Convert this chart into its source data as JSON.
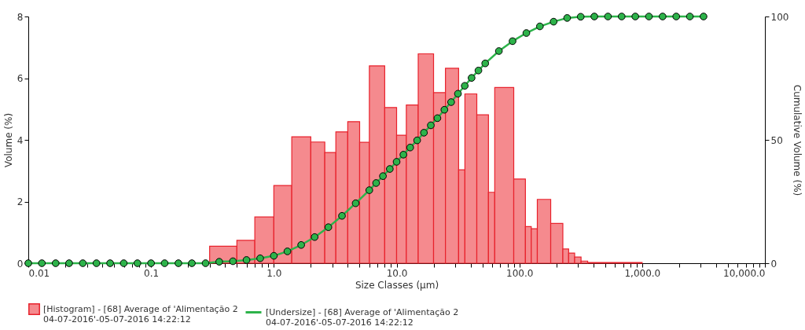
{
  "chart_data": {
    "type": "histogram",
    "xlabel": "Size Classes (µm)",
    "ylabel": "Volume (%)",
    "y2label": "Cumulative Volume (%)",
    "log": "x",
    "grid": false,
    "legend": "bottom",
    "xlim": [
      0.01,
      10000
    ],
    "xticks": [
      0.01,
      {
        "value": 0.02,
        "label": null
      },
      {
        "value": 0.03,
        "label": null
      },
      {
        "value": 0.04,
        "label": null
      },
      {
        "value": 0.05,
        "label": null
      },
      {
        "value": 0.06,
        "label": null
      },
      {
        "value": 0.07,
        "label": null
      },
      {
        "value": 0.08,
        "label": null
      },
      {
        "value": 0.09,
        "label": null
      },
      0.1,
      {
        "value": 0.2,
        "label": null
      },
      {
        "value": 0.3,
        "label": null
      },
      {
        "value": 0.4,
        "label": null
      },
      {
        "value": 0.5,
        "label": null
      },
      {
        "value": 0.6,
        "label": null
      },
      {
        "value": 0.7,
        "label": null
      },
      {
        "value": 0.8,
        "label": null
      },
      {
        "value": 0.9,
        "label": null
      },
      {
        "value": 1,
        "label": "1.0"
      },
      {
        "value": 2,
        "label": null
      },
      {
        "value": 3,
        "label": null
      },
      {
        "value": 4,
        "label": null
      },
      {
        "value": 5,
        "label": null
      },
      {
        "value": 6,
        "label": null
      },
      {
        "value": 7,
        "label": null
      },
      {
        "value": 8,
        "label": null
      },
      {
        "value": 9,
        "label": null
      },
      {
        "value": 10,
        "label": "10.0"
      },
      {
        "value": 20,
        "label": null
      },
      {
        "value": 30,
        "label": null
      },
      {
        "value": 40,
        "label": null
      },
      {
        "value": 50,
        "label": null
      },
      {
        "value": 60,
        "label": null
      },
      {
        "value": 70,
        "label": null
      },
      {
        "value": 80,
        "label": null
      },
      {
        "value": 90,
        "label": null
      },
      {
        "value": 100,
        "label": "100.0"
      },
      {
        "value": 200,
        "label": null
      },
      {
        "value": 300,
        "label": null
      },
      {
        "value": 400,
        "label": null
      },
      {
        "value": 500,
        "label": null
      },
      {
        "value": 600,
        "label": null
      },
      {
        "value": 700,
        "label": null
      },
      {
        "value": 800,
        "label": null
      },
      {
        "value": 900,
        "label": null
      },
      {
        "value": 1000,
        "label": "1,000.0"
      },
      {
        "value": 2000,
        "label": null
      },
      {
        "value": 3000,
        "label": null
      },
      {
        "value": 4000,
        "label": null
      },
      {
        "value": 5000,
        "label": null
      },
      {
        "value": 6000,
        "label": null
      },
      {
        "value": 7000,
        "label": null
      },
      {
        "value": 8000,
        "label": null
      },
      {
        "value": 9000,
        "label": null
      },
      {
        "value": 10000,
        "label": "10,000.0"
      }
    ],
    "ylim": [
      0,
      8
    ],
    "yticks": [
      0,
      2,
      4,
      6,
      8
    ],
    "y2lim": [
      0,
      100
    ],
    "y2ticks": [
      0,
      50,
      100
    ],
    "bins": [
      0.3,
      0.5,
      0.7,
      1.0,
      1.4,
      2.0,
      2.6,
      3.2,
      4.0,
      5.0,
      6.0,
      8.0,
      10,
      12,
      15,
      20,
      25,
      32,
      36,
      45,
      56,
      63,
      90,
      112,
      125,
      140,
      180,
      226,
      252,
      282,
      318,
      360,
      1000
    ],
    "series": [
      {
        "name": "[Histogram] - [68] Average of 'Alimentação 2\n04-07-2016'-05-07-2016 14:22:12",
        "color": "#f58a8e",
        "values": [
          0.55,
          0.74,
          1.5,
          2.52,
          4.1,
          3.93,
          3.59,
          4.26,
          4.59,
          3.92,
          6.4,
          5.05,
          4.15,
          5.13,
          6.79,
          5.53,
          6.32,
          3.03,
          5.49,
          4.81,
          2.3,
          5.7,
          2.73,
          1.19,
          1.12,
          2.07,
          1.29,
          0.46,
          0.33,
          0.2,
          0.07,
          0.02
        ]
      },
      {
        "name": "[Undersize] - [68] Average of 'Alimentação 2\n04-07-2016'-05-07-2016 14:22:12",
        "type": "line",
        "axis": "y2",
        "color": "#2db34a",
        "marker": "circle",
        "x": [
          0.01,
          0.0129,
          0.0167,
          0.0215,
          0.0278,
          0.0359,
          0.0464,
          0.0599,
          0.0774,
          0.1,
          0.129,
          0.167,
          0.215,
          0.278,
          0.359,
          0.464,
          0.599,
          0.774,
          1,
          1.29,
          1.67,
          2.15,
          2.78,
          3.59,
          4.64,
          5.99,
          6.81,
          7.74,
          8.8,
          10,
          11.36,
          12.9,
          14.7,
          16.7,
          19.0,
          21.5,
          24.5,
          27.8,
          31.6,
          35.9,
          40.8,
          46.4,
          52.7,
          68.1,
          88.0,
          114,
          147,
          190,
          245,
          316,
          408,
          527,
          681,
          880,
          1136,
          1468,
          1896,
          2448,
          3162
        ],
        "values": [
          0,
          0,
          0,
          0,
          0,
          0,
          0,
          0,
          0,
          0,
          0,
          0,
          0,
          0,
          0.6,
          0.8,
          1.3,
          2.0,
          3.0,
          4.8,
          7.4,
          10.6,
          14.6,
          19.2,
          24.3,
          29.6,
          32.5,
          35.3,
          38.2,
          41.1,
          44.0,
          46.9,
          49.8,
          52.9,
          55.9,
          58.8,
          62.2,
          65.3,
          68.7,
          71.9,
          75.1,
          78.1,
          81.0,
          86.0,
          90.0,
          93.3,
          96.0,
          97.9,
          99.4,
          99.9,
          100,
          100,
          100,
          100,
          100,
          100,
          100,
          100,
          100
        ]
      }
    ]
  }
}
